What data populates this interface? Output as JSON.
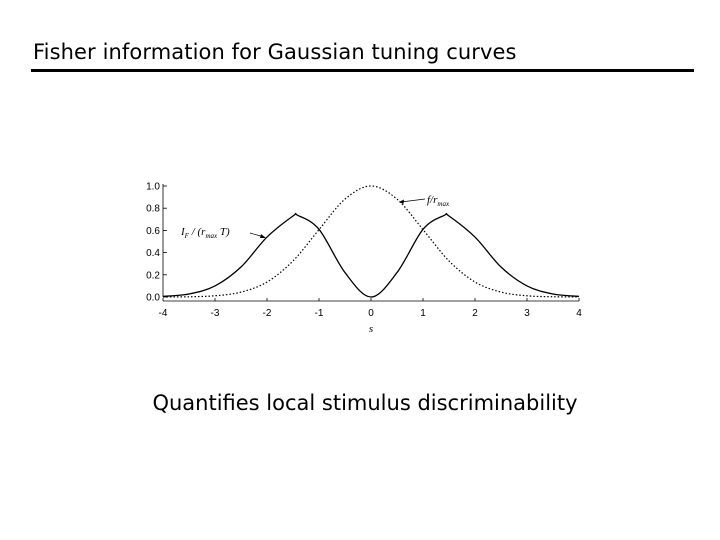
{
  "slide": {
    "title": "Fisher information for Gaussian tuning curves",
    "caption": "Quantifies local stimulus discriminability"
  },
  "chart_data": {
    "type": "line",
    "title": "",
    "xlabel": "s",
    "ylabel": "",
    "xlim": [
      -4,
      4
    ],
    "ylim": [
      0,
      1.0
    ],
    "grid": false,
    "x_ticks": [
      -4,
      -3,
      -2,
      -1,
      0,
      1,
      2,
      3,
      4
    ],
    "x_tick_labels": [
      "-4",
      "-3",
      "-2",
      "-1",
      "0",
      "1",
      "2",
      "3",
      "4"
    ],
    "y_ticks": [
      0,
      0.2,
      0.4,
      0.6,
      0.8,
      1.0
    ],
    "y_tick_labels": [
      "0.0",
      "0.2",
      "0.4",
      "0.6",
      "0.8",
      "1.0"
    ],
    "series": [
      {
        "name": "f / r_max",
        "style": "dotted",
        "x": [
          -4.0,
          -3.5,
          -3.0,
          -2.5,
          -2.0,
          -1.5,
          -1.0,
          -0.5,
          0.0,
          0.5,
          1.0,
          1.5,
          2.0,
          2.5,
          3.0,
          3.5,
          4.0
        ],
        "y": [
          0.0003,
          0.0022,
          0.011,
          0.044,
          0.135,
          0.325,
          0.607,
          0.882,
          1.0,
          0.882,
          0.607,
          0.325,
          0.135,
          0.044,
          0.011,
          0.0022,
          0.0003
        ]
      },
      {
        "name": "I_F / (r_max T)",
        "style": "solid",
        "x": [
          -4.0,
          -3.5,
          -3.0,
          -2.5,
          -2.0,
          -1.5,
          -1.41,
          -1.0,
          -0.5,
          0.0,
          0.5,
          1.0,
          1.41,
          1.5,
          2.0,
          2.5,
          3.0,
          3.5,
          4.0
        ],
        "y": [
          0.0054,
          0.027,
          0.1,
          0.27,
          0.54,
          0.73,
          0.736,
          0.61,
          0.22,
          0.0,
          0.22,
          0.61,
          0.736,
          0.73,
          0.54,
          0.27,
          0.1,
          0.027,
          0.0054
        ]
      }
    ],
    "annotations": [
      {
        "text": "f/r",
        "subscript": "max",
        "points_to": "f / r_max",
        "at_x": 0.6
      },
      {
        "text": "I",
        "subscript": "F",
        "rest": " / (r",
        "subscript2": "max",
        "rest2": " T)",
        "points_to": "I_F / (r_max T)",
        "at_x": -2.0
      }
    ],
    "colors": {
      "line": "#000000"
    }
  }
}
